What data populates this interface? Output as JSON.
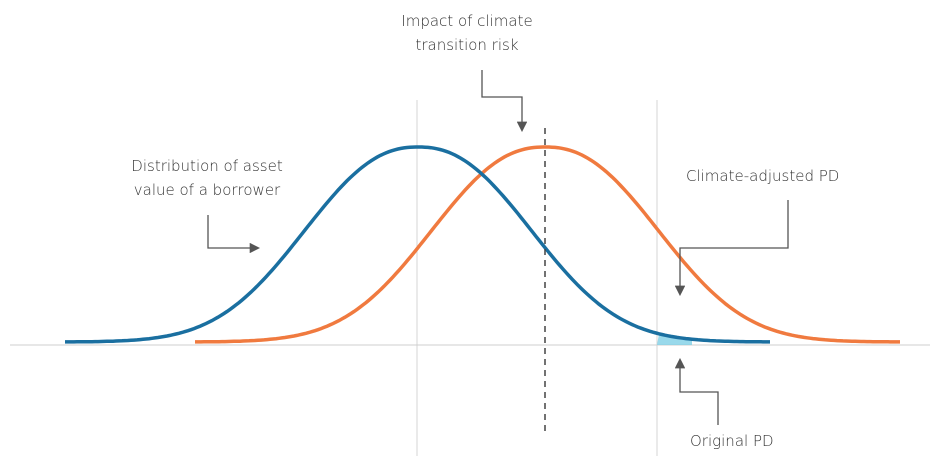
{
  "annotations": {
    "impact": {
      "lines": [
        "Impact of climate",
        "transition risk"
      ]
    },
    "distribution": {
      "lines": [
        "Distribution of asset",
        "value of a borrower"
      ]
    },
    "climate_pd": {
      "lines": [
        "Climate-adjusted PD"
      ]
    },
    "original_pd": {
      "lines": [
        "Original PD"
      ]
    }
  }
}
